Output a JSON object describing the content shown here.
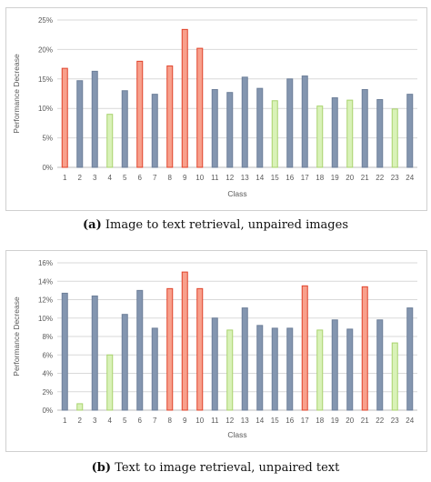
{
  "colors": {
    "grey_fill": "#8496b0",
    "grey_stroke": "#6d7f99",
    "green_fill": "#d9f2b8",
    "green_stroke": "#a9d36e",
    "red_fill": "#f8a08c",
    "red_stroke": "#e0432b",
    "grid": "#d9d9d9",
    "axis": "#bfbfbf",
    "text": "#595959"
  },
  "captions": {
    "a_tag": "(a)",
    "a_text": " Image to text retrieval, unpaired images",
    "b_tag": "(b)",
    "b_text": " Text to image retrieval, unpaired text"
  },
  "chart_data": [
    {
      "type": "bar",
      "xlabel": "Class",
      "ylabel": "Performance Decrease",
      "ylim": [
        0,
        25
      ],
      "yticks": [
        "0%",
        "5%",
        "10%",
        "15%",
        "20%",
        "25%"
      ],
      "ytick_values": [
        0,
        5,
        10,
        15,
        20,
        25
      ],
      "grid": true,
      "categories": [
        "1",
        "2",
        "3",
        "4",
        "5",
        "6",
        "7",
        "8",
        "9",
        "10",
        "11",
        "12",
        "13",
        "14",
        "15",
        "16",
        "17",
        "18",
        "19",
        "20",
        "21",
        "22",
        "23",
        "24"
      ],
      "values": [
        16.8,
        14.7,
        16.3,
        9.0,
        13.0,
        18.0,
        12.4,
        17.2,
        23.4,
        20.2,
        13.2,
        12.7,
        15.3,
        13.4,
        11.3,
        15.0,
        15.5,
        10.4,
        11.8,
        11.4,
        13.2,
        11.5,
        9.9,
        12.4
      ],
      "bar_colors": [
        "red",
        "grey",
        "grey",
        "green",
        "grey",
        "red",
        "grey",
        "red",
        "red",
        "red",
        "grey",
        "grey",
        "grey",
        "grey",
        "green",
        "grey",
        "grey",
        "green",
        "grey",
        "green",
        "grey",
        "grey",
        "green",
        "grey"
      ]
    },
    {
      "type": "bar",
      "xlabel": "Class",
      "ylabel": "Performance Decrease",
      "ylim": [
        0,
        16
      ],
      "yticks": [
        "0%",
        "2%",
        "4%",
        "6%",
        "8%",
        "10%",
        "12%",
        "14%",
        "16%"
      ],
      "ytick_values": [
        0,
        2,
        4,
        6,
        8,
        10,
        12,
        14,
        16
      ],
      "grid": true,
      "categories": [
        "1",
        "2",
        "3",
        "4",
        "5",
        "6",
        "7",
        "8",
        "9",
        "10",
        "11",
        "12",
        "13",
        "14",
        "15",
        "16",
        "17",
        "18",
        "19",
        "20",
        "21",
        "22",
        "23",
        "24"
      ],
      "values": [
        12.7,
        0.7,
        12.4,
        6.0,
        10.4,
        13.0,
        8.9,
        13.2,
        15.0,
        13.2,
        10.0,
        8.7,
        11.1,
        9.2,
        8.9,
        8.9,
        13.5,
        8.7,
        9.8,
        8.8,
        13.4,
        9.8,
        7.3,
        11.1
      ],
      "bar_colors": [
        "grey",
        "green",
        "grey",
        "green",
        "grey",
        "grey",
        "grey",
        "red",
        "red",
        "red",
        "grey",
        "green",
        "grey",
        "grey",
        "grey",
        "grey",
        "red",
        "green",
        "grey",
        "grey",
        "red",
        "grey",
        "green",
        "grey"
      ]
    }
  ]
}
